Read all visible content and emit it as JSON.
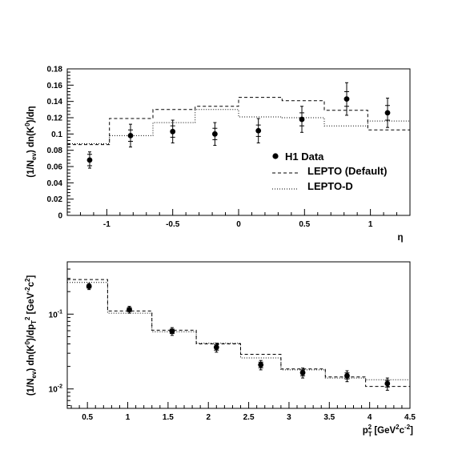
{
  "chart_data": [
    {
      "type": "scatter",
      "ylabel": "(1/N_ev) dn(K0)/dη",
      "xlabel": "η",
      "xlim": [
        -1.3,
        1.3
      ],
      "ylim": [
        0,
        0.18
      ],
      "x_ticks": [
        -1,
        -0.5,
        0,
        0.5,
        1
      ],
      "x_tick_labels": [
        "-1",
        "-0.5",
        "0",
        "0.5",
        "1"
      ],
      "y_ticks": [
        0,
        0.02,
        0.04,
        0.06,
        0.08,
        0.1,
        0.12,
        0.14,
        0.16,
        0.18
      ],
      "y_tick_labels": [
        "0",
        "0.02",
        "0.04",
        "0.06",
        "0.08",
        "0.1",
        "0.12",
        "0.14",
        "0.16",
        "0.18"
      ],
      "legend_position": "lower-right",
      "series": [
        {
          "name": "H1 Data",
          "style": "points",
          "x": [
            -1.13,
            -0.82,
            -0.5,
            -0.18,
            0.15,
            0.48,
            0.82,
            1.13
          ],
          "values": [
            0.068,
            0.098,
            0.103,
            0.1,
            0.104,
            0.118,
            0.143,
            0.126
          ],
          "err_stat": [
            0.007,
            0.007,
            0.007,
            0.007,
            0.007,
            0.008,
            0.009,
            0.009
          ],
          "err_total": [
            0.01,
            0.014,
            0.014,
            0.014,
            0.015,
            0.016,
            0.02,
            0.018
          ]
        },
        {
          "name": "LEPTO (Default)",
          "style": "histogram-dashed",
          "bin_edges": [
            -1.3,
            -0.98,
            -0.65,
            -0.33,
            0,
            0.33,
            0.65,
            0.98,
            1.3
          ],
          "values": [
            0.087,
            0.119,
            0.13,
            0.134,
            0.145,
            0.141,
            0.129,
            0.105
          ]
        },
        {
          "name": "LEPTO-D",
          "style": "histogram-dotted",
          "bin_edges": [
            -1.3,
            -0.98,
            -0.65,
            -0.33,
            0,
            0.33,
            0.65,
            0.98,
            1.3
          ],
          "values": [
            0.088,
            0.098,
            0.114,
            0.13,
            0.121,
            0.12,
            0.11,
            0.116
          ]
        }
      ]
    },
    {
      "type": "scatter",
      "ylabel": "(1/N_ev) dn(K0)/dp_T^2 [GeV^-2 c^2]",
      "xlabel": "p_T^2 [GeV^2 c^-2]",
      "xlim": [
        0.25,
        4.5
      ],
      "ylim": [
        0.0055,
        0.5
      ],
      "log_y": true,
      "x_ticks": [
        0.5,
        1,
        1.5,
        2,
        2.5,
        3,
        3.5,
        4,
        4.5
      ],
      "x_tick_labels": [
        "0.5",
        "1",
        "1.5",
        "2",
        "2.5",
        "3",
        "3.5",
        "4",
        "4.5"
      ],
      "series": [
        {
          "name": "H1 Data",
          "style": "points",
          "x": [
            0.52,
            1.02,
            1.55,
            2.1,
            2.65,
            3.17,
            3.72,
            4.22
          ],
          "values": [
            0.235,
            0.115,
            0.059,
            0.036,
            0.021,
            0.0165,
            0.015,
            0.0118
          ],
          "err_stat": [
            0.012,
            0.007,
            0.004,
            0.003,
            0.0018,
            0.0015,
            0.0014,
            0.0012
          ],
          "err_total": [
            0.022,
            0.012,
            0.007,
            0.005,
            0.003,
            0.0025,
            0.0025,
            0.0022
          ]
        },
        {
          "name": "LEPTO (Default)",
          "style": "histogram-dashed",
          "bin_edges": [
            0.25,
            0.75,
            1.3,
            1.85,
            2.4,
            2.9,
            3.45,
            3.95,
            4.5
          ],
          "values": [
            0.29,
            0.11,
            0.061,
            0.04,
            0.029,
            0.0185,
            0.0145,
            0.0108
          ]
        },
        {
          "name": "LEPTO-D",
          "style": "histogram-dotted",
          "bin_edges": [
            0.25,
            0.75,
            1.3,
            1.85,
            2.4,
            2.9,
            3.45,
            3.95,
            4.5
          ],
          "values": [
            0.265,
            0.103,
            0.058,
            0.041,
            0.026,
            0.018,
            0.014,
            0.0133
          ]
        }
      ]
    }
  ]
}
